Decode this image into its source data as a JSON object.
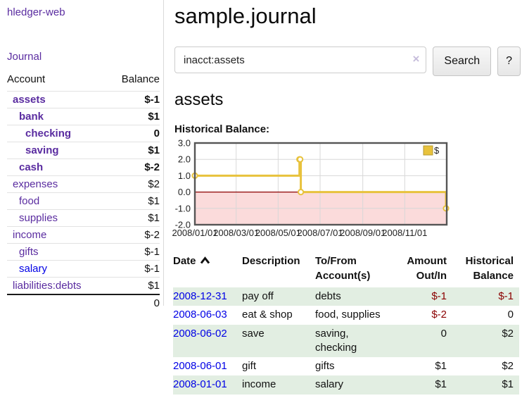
{
  "colors": {
    "link_purple": "#5a2ca0",
    "link_blue": "#0000e6",
    "negative_strong": "#8b0000",
    "negative_dim": "#c28484",
    "row_green": "#e2eee2",
    "sidebar_border": "#d9d9d9"
  },
  "sidebar": {
    "app_title": "hledger-web",
    "journal_label": "Journal",
    "accounts_table": {
      "headers": {
        "account": "Account",
        "balance": "Balance"
      },
      "rows": [
        {
          "name": "assets",
          "balance": "$-1",
          "level": 0,
          "bold": true
        },
        {
          "name": "bank",
          "balance": "$1",
          "level": 1,
          "bold": true
        },
        {
          "name": "checking",
          "balance": "0",
          "level": 2,
          "bold": true
        },
        {
          "name": "saving",
          "balance": "$1",
          "level": 2,
          "bold": true
        },
        {
          "name": "cash",
          "balance": "$-2",
          "level": 1,
          "bold": true
        },
        {
          "name": "expenses",
          "balance": "$2",
          "level": 0,
          "bold": false
        },
        {
          "name": "food",
          "balance": "$1",
          "level": 1,
          "bold": false
        },
        {
          "name": "supplies",
          "balance": "$1",
          "level": 1,
          "bold": false
        },
        {
          "name": "income",
          "balance": "$-2",
          "level": 0,
          "bold": false
        },
        {
          "name": "gifts",
          "balance": "$-1",
          "level": 1,
          "bold": false
        },
        {
          "name": "salary",
          "balance": "$-1",
          "level": 1,
          "bold": false,
          "blue_link": true
        },
        {
          "name": "liabilities:debts",
          "balance": "$1",
          "level": 0,
          "bold": false
        }
      ],
      "total": "0"
    }
  },
  "header": {
    "title": "sample.journal"
  },
  "search": {
    "value": "inacct:assets",
    "clear_icon": "×",
    "button_label": "Search",
    "help_label": "?"
  },
  "account_page": {
    "title": "assets",
    "chart_label": "Historical Balance:"
  },
  "chart_data": {
    "type": "line",
    "step": true,
    "title": "Historical Balance",
    "series": [
      {
        "name": "$",
        "color": "#e8c23c",
        "marker_fill": "#ffffff",
        "points": [
          [
            "2008-01-01",
            1
          ],
          [
            "2008-06-01",
            2
          ],
          [
            "2008-06-02",
            2
          ],
          [
            "2008-06-03",
            0
          ],
          [
            "2008-12-31",
            -1
          ]
        ]
      }
    ],
    "x_ticks": [
      "2008/01/01",
      "2008/03/01",
      "2008/05/01",
      "2008/07/01",
      "2008/09/01",
      "2008/11/01"
    ],
    "y_ticks": [
      3.0,
      2.0,
      1.0,
      0.0,
      -1.0,
      -2.0
    ],
    "ylim": [
      -2,
      3
    ],
    "x_range": [
      "2008-01-01",
      "2009-01-01"
    ],
    "grid": true,
    "negative_region_color": "#fbdbdb",
    "zero_line_color": "#8b0000",
    "grid_color": "#d8d8d8",
    "border_color": "#555555",
    "legend": {
      "position": "top-right",
      "label": "$",
      "swatch_color": "#e8c23c",
      "swatch_border": "#b59a33"
    }
  },
  "register_table": {
    "headers": {
      "date": "Date",
      "description": "Description",
      "accounts": "To/From Account(s)",
      "amount": "Amount Out/In",
      "balance": "Historical Balance"
    },
    "sort": {
      "column": "date",
      "direction": "ascending"
    },
    "rows": [
      {
        "date": "2008-12-31",
        "description": "pay off",
        "accounts": "debts",
        "amount": "$-1",
        "balance": "$-1"
      },
      {
        "date": "2008-06-03",
        "description": "eat & shop",
        "accounts": "food, supplies",
        "amount": "$-2",
        "balance": "0"
      },
      {
        "date": "2008-06-02",
        "description": "save",
        "accounts": "saving, checking",
        "amount": "0",
        "balance": "$2"
      },
      {
        "date": "2008-06-01",
        "description": "gift",
        "accounts": "gifts",
        "amount": "$1",
        "balance": "$2"
      },
      {
        "date": "2008-01-01",
        "description": "income",
        "accounts": "salary",
        "amount": "$1",
        "balance": "$1"
      }
    ]
  }
}
